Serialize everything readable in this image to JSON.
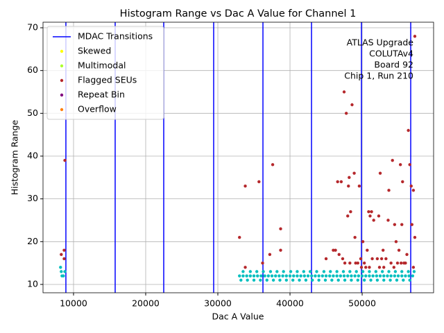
{
  "chart_data": {
    "type": "scatter",
    "title": "Histogram Range vs Dac A Value for Channel 1",
    "x_label": "Dac A Value",
    "y_label": "Histogram Range",
    "annotation": [
      "ATLAS Upgrade",
      "COLUTAv4",
      "Board 92",
      "Chip 1, Run 210"
    ],
    "xlim": [
      5770,
      59900
    ],
    "ylim": [
      8.05,
      71.3
    ],
    "xticks": [
      10000,
      20000,
      30000,
      40000,
      50000
    ],
    "yticks": [
      10,
      20,
      30,
      40,
      50,
      60,
      70
    ],
    "grid": true,
    "legend": "upper left",
    "vlines": {
      "name": "MDAC Transitions",
      "color": "#0000ff",
      "values": [
        8940,
        15770,
        22500,
        29420,
        36250,
        42980,
        49900,
        56730
      ]
    },
    "series": [
      {
        "color": "#00bfbf",
        "x": [
          8200,
          8300,
          8400,
          8600,
          8800,
          33000,
          33500,
          34000,
          34500,
          35000,
          35500,
          36000,
          36500,
          37000,
          37500,
          38000,
          38500,
          39000,
          39500,
          40000,
          40500,
          41000,
          41500,
          42000,
          42500,
          43000,
          43500,
          44000,
          44500,
          45000,
          45500,
          46000,
          46500,
          47000,
          47500,
          48000,
          48500,
          49000,
          49500,
          50000,
          50500,
          51000,
          51500,
          52000,
          52500,
          53000,
          53500,
          54000,
          54500,
          55000,
          55500,
          56000,
          56500,
          57000,
          33200,
          34100,
          35000,
          35900,
          36800,
          37700,
          38600,
          39500,
          40400,
          41300,
          42200,
          43100,
          44000,
          44900,
          45800,
          46700,
          47600,
          48500,
          49400,
          50300,
          51200,
          52100,
          53000,
          53900,
          54800,
          55700,
          56600,
          33500,
          34500,
          35400,
          36300,
          37300,
          38200,
          39100,
          40100,
          41000,
          41900,
          42800,
          43700,
          44700,
          45600,
          46500,
          47400,
          48300,
          49200,
          50100,
          51000,
          51900,
          52800,
          53700,
          54600,
          55500,
          56400,
          57200
        ],
        "values": [
          14,
          13,
          12,
          12,
          13,
          12,
          12,
          12,
          12,
          12,
          12,
          12,
          12,
          12,
          12,
          12,
          12,
          12,
          12,
          12,
          12,
          12,
          12,
          12,
          12,
          12,
          12,
          12,
          12,
          12,
          12,
          12,
          12,
          12,
          12,
          12,
          12,
          12,
          12,
          12,
          12,
          12,
          12,
          12,
          12,
          12,
          12,
          12,
          12,
          12,
          12,
          12,
          12,
          12,
          11,
          11,
          11,
          11,
          11,
          11,
          11,
          11,
          11,
          11,
          11,
          11,
          11,
          11,
          11,
          11,
          11,
          11,
          11,
          11,
          11,
          11,
          11,
          11,
          11,
          11,
          11,
          13,
          13,
          13,
          13,
          13,
          13,
          13,
          13,
          13,
          13,
          13,
          13,
          13,
          13,
          13,
          13,
          13,
          13,
          13,
          13,
          13,
          13,
          13,
          13,
          13,
          13,
          13
        ]
      },
      {
        "name": "Skewed",
        "color": "#ffff00",
        "x": [],
        "values": []
      },
      {
        "name": "Multimodal",
        "color": "#adff2f",
        "x": [],
        "values": []
      },
      {
        "name": "Flagged SEUs",
        "color": "#b5282c",
        "x": [
          8300,
          8700,
          8700,
          8800,
          33000,
          33800,
          33800,
          35700,
          36200,
          37200,
          37600,
          38700,
          38700,
          45000,
          46000,
          46300,
          46600,
          46800,
          47100,
          47300,
          47500,
          47600,
          47800,
          48000,
          48100,
          48200,
          48400,
          48600,
          48900,
          49000,
          49100,
          49400,
          49600,
          49800,
          50100,
          50300,
          50500,
          50700,
          50900,
          51100,
          51300,
          51400,
          51600,
          52100,
          52300,
          52500,
          52700,
          52900,
          53300,
          53600,
          53700,
          54000,
          54200,
          54500,
          54700,
          54900,
          55100,
          55300,
          55500,
          55600,
          55800,
          56000,
          56200,
          56400,
          56600,
          56800,
          56900,
          57100,
          57300,
          57300,
          57100,
          55400,
          54400,
          53000,
          52400,
          51000,
          48300,
          49900
        ],
        "values": [
          17,
          18,
          16,
          39,
          21,
          33,
          14,
          34,
          15,
          17,
          38,
          23,
          18,
          16,
          18,
          18,
          34,
          17,
          34,
          16,
          55,
          15,
          50,
          26,
          33,
          35,
          27,
          52,
          36,
          21,
          15,
          15,
          33,
          16,
          20,
          15,
          14,
          18,
          27,
          26,
          27,
          16,
          25,
          16,
          26,
          36,
          16,
          18,
          16,
          25,
          32,
          15,
          39,
          24,
          20,
          15,
          18,
          38,
          24,
          34,
          15,
          15,
          17,
          46,
          38,
          33,
          24,
          32,
          68,
          21,
          14,
          15,
          14,
          14,
          14,
          14,
          15,
          14
        ]
      },
      {
        "name": "Repeat Bin",
        "color": "#800080",
        "x": [],
        "values": []
      },
      {
        "name": "Overflow",
        "color": "#ff7f0e",
        "x": [],
        "values": []
      }
    ]
  }
}
